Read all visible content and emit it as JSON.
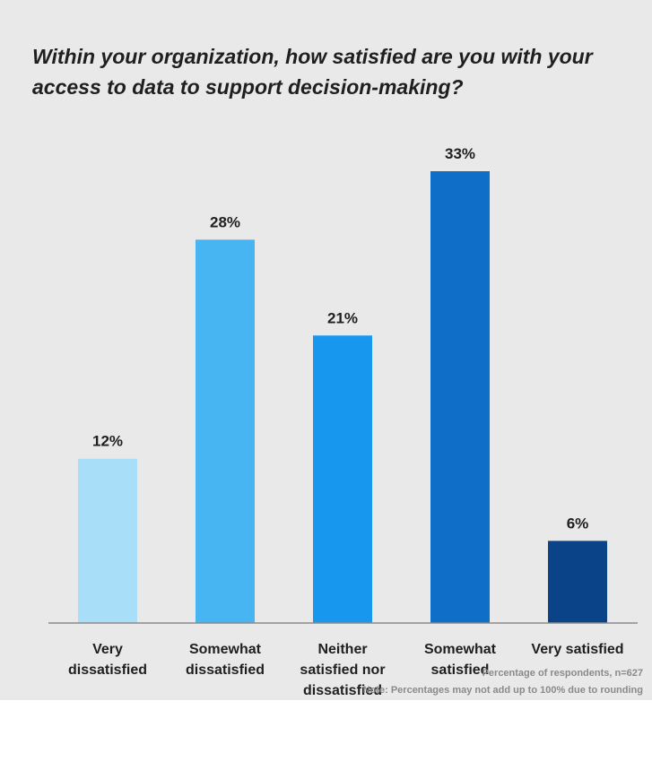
{
  "chart_data": {
    "type": "bar",
    "title": "Within your organization, how satisfied are you with your access to data to support decision-making?",
    "categories": [
      [
        "Very",
        "dissatisfied"
      ],
      [
        "Somewhat",
        "dissatisfied"
      ],
      [
        "Neither",
        "satisfied nor",
        "dissatisfied"
      ],
      [
        "Somewhat",
        "satisfied"
      ],
      [
        "Very satisfied"
      ]
    ],
    "values": [
      12,
      28,
      21,
      33,
      6
    ],
    "value_labels": [
      "12%",
      "28%",
      "21%",
      "33%",
      "6%"
    ],
    "colors": [
      "#a9def9",
      "#46b5f2",
      "#1797ee",
      "#0f6ec7",
      "#0b4389"
    ],
    "ylim": [
      0,
      33
    ],
    "grid": false,
    "xlabel": "",
    "ylabel": ""
  },
  "footnotes": {
    "respondents": "Percentage of respondents, n=627",
    "rounding": "Note: Percentages may not add up to 100% due to rounding"
  }
}
